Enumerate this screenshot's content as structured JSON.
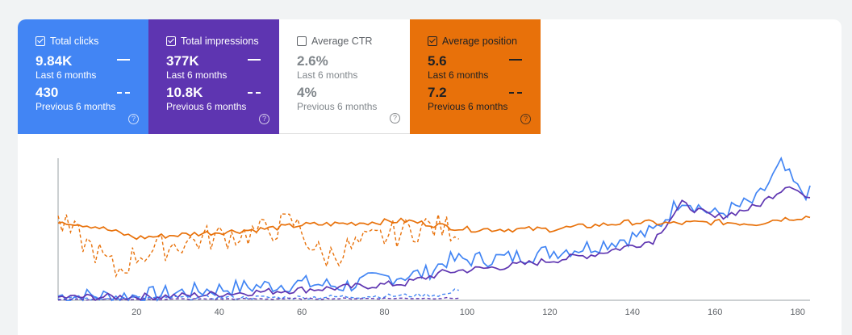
{
  "metrics": [
    {
      "label": "Total clicks",
      "checked": true,
      "current": "9.84K",
      "current_period": "Last 6 months",
      "previous": "430",
      "previous_period": "Previous 6 months",
      "help": "?",
      "color": "#4285f4"
    },
    {
      "label": "Total impressions",
      "checked": true,
      "current": "377K",
      "current_period": "Last 6 months",
      "previous": "10.8K",
      "previous_period": "Previous 6 months",
      "help": "?",
      "color": "#5e35b1"
    },
    {
      "label": "Average CTR",
      "checked": false,
      "current": "2.6%",
      "current_period": "Last 6 months",
      "previous": "4%",
      "previous_period": "Previous 6 months",
      "help": "?",
      "color": "#ffffff"
    },
    {
      "label": "Average position",
      "checked": true,
      "current": "5.6",
      "current_period": "Last 6 months",
      "previous": "7.2",
      "previous_period": "Previous 6 months",
      "help": "?",
      "color": "#e8710a"
    }
  ],
  "chart_data": {
    "type": "line",
    "x_ticks": [
      "20",
      "40",
      "60",
      "80",
      "100",
      "120",
      "140",
      "160",
      "180"
    ],
    "xlim": [
      1,
      183
    ],
    "grid": false,
    "colors": {
      "clicks": "#4285f4",
      "impressions": "#5e35b1",
      "position": "#e8710a"
    },
    "series": [
      {
        "key": "clicks_current",
        "dashed": false,
        "anchors": [
          [
            1,
            0.03
          ],
          [
            20,
            0.03
          ],
          [
            40,
            0.08
          ],
          [
            50,
            0.1
          ],
          [
            60,
            0.12
          ],
          [
            70,
            0.1
          ],
          [
            80,
            0.16
          ],
          [
            90,
            0.19
          ],
          [
            95,
            0.28
          ],
          [
            110,
            0.3
          ],
          [
            130,
            0.38
          ],
          [
            145,
            0.48
          ],
          [
            152,
            0.72
          ],
          [
            160,
            0.6
          ],
          [
            170,
            0.7
          ],
          [
            176,
            0.95
          ],
          [
            180,
            0.78
          ],
          [
            183,
            0.75
          ]
        ],
        "noise": 0.06
      },
      {
        "key": "impressions_current",
        "dashed": false,
        "anchors": [
          [
            1,
            0.02
          ],
          [
            30,
            0.03
          ],
          [
            50,
            0.06
          ],
          [
            70,
            0.09
          ],
          [
            85,
            0.12
          ],
          [
            95,
            0.2
          ],
          [
            110,
            0.24
          ],
          [
            130,
            0.32
          ],
          [
            145,
            0.42
          ],
          [
            152,
            0.68
          ],
          [
            160,
            0.58
          ],
          [
            170,
            0.66
          ],
          [
            178,
            0.82
          ],
          [
            183,
            0.7
          ]
        ],
        "noise": 0.025
      },
      {
        "key": "position_current",
        "dashed": false,
        "anchors": [
          [
            1,
            0.56
          ],
          [
            10,
            0.52
          ],
          [
            20,
            0.44
          ],
          [
            30,
            0.46
          ],
          [
            40,
            0.48
          ],
          [
            50,
            0.5
          ],
          [
            60,
            0.53
          ],
          [
            70,
            0.54
          ],
          [
            85,
            0.56
          ],
          [
            100,
            0.5
          ],
          [
            120,
            0.5
          ],
          [
            140,
            0.55
          ],
          [
            150,
            0.54
          ],
          [
            160,
            0.55
          ],
          [
            170,
            0.54
          ],
          [
            175,
            0.57
          ],
          [
            183,
            0.59
          ]
        ],
        "noise": 0.02
      },
      {
        "key": "clicks_previous",
        "dashed": true,
        "anchors": [
          [
            1,
            0.01
          ],
          [
            40,
            0.02
          ],
          [
            60,
            0.02
          ],
          [
            80,
            0.03
          ],
          [
            95,
            0.04
          ],
          [
            98,
            0.08
          ]
        ],
        "noise": 0.015
      },
      {
        "key": "impressions_previous",
        "dashed": true,
        "anchors": [
          [
            1,
            0.005
          ],
          [
            50,
            0.01
          ],
          [
            98,
            0.015
          ]
        ],
        "noise": 0.005
      },
      {
        "key": "position_previous",
        "dashed": true,
        "anchors": [
          [
            1,
            0.55
          ],
          [
            10,
            0.35
          ],
          [
            15,
            0.2
          ],
          [
            20,
            0.32
          ],
          [
            30,
            0.4
          ],
          [
            40,
            0.45
          ],
          [
            50,
            0.48
          ],
          [
            58,
            0.55
          ],
          [
            65,
            0.3
          ],
          [
            70,
            0.35
          ],
          [
            80,
            0.45
          ],
          [
            90,
            0.52
          ],
          [
            98,
            0.5
          ]
        ],
        "noise": 0.1
      }
    ]
  }
}
